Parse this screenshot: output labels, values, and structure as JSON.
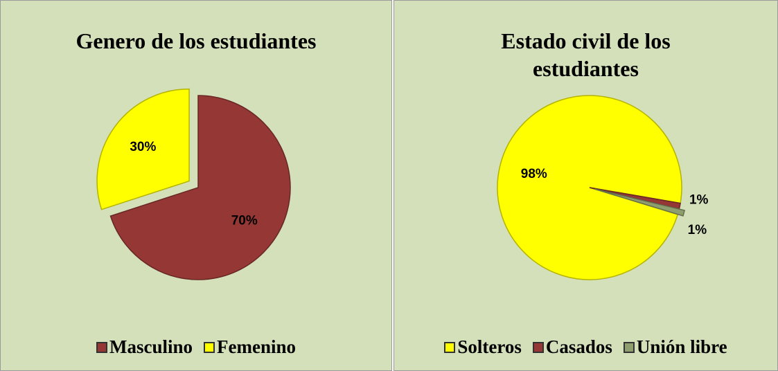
{
  "chart_data": [
    {
      "type": "pie",
      "title": "Genero de los estudiantes",
      "categories": [
        "Masculino",
        "Femenino"
      ],
      "values": [
        70,
        30
      ],
      "value_labels": [
        "70%",
        "30%"
      ],
      "colors": [
        "#953735",
        "#ffff00"
      ],
      "legend": "bottom"
    },
    {
      "type": "pie",
      "title": "Estado civil de los estudiantes",
      "categories": [
        "Solteros",
        "Casados",
        "Unión libre"
      ],
      "values": [
        98,
        1,
        1
      ],
      "value_labels": [
        "98%",
        "1%",
        "1%"
      ],
      "colors": [
        "#ffff00",
        "#953735",
        "#8f9e6e"
      ],
      "legend": "bottom"
    }
  ]
}
